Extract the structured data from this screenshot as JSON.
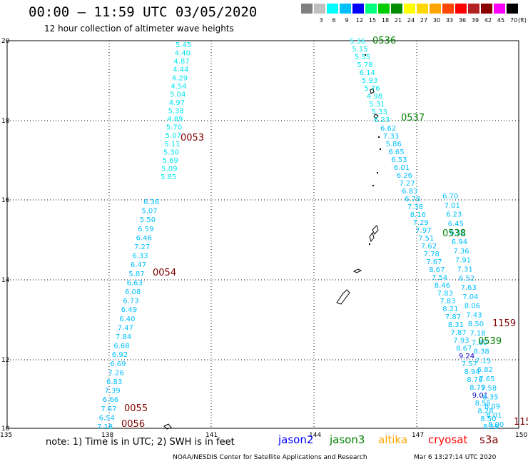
{
  "title": "00:00 – 11:59 UTC 03/05/2020",
  "subtitle": "12 hour collection of altimeter wave heights",
  "legend": {
    "unit_label": "(ft)",
    "items": [
      {
        "label": "",
        "color": "#808080"
      },
      {
        "label": "3",
        "color": "#c0c0c0"
      },
      {
        "label": "6",
        "color": "#00ffff"
      },
      {
        "label": "9",
        "color": "#00bfff"
      },
      {
        "label": "12",
        "color": "#0000ff"
      },
      {
        "label": "15",
        "color": "#00ff7f"
      },
      {
        "label": "18",
        "color": "#00cd00"
      },
      {
        "label": "21",
        "color": "#008b00"
      },
      {
        "label": "24",
        "color": "#ffff00"
      },
      {
        "label": "27",
        "color": "#ffd700"
      },
      {
        "label": "30",
        "color": "#ffa500"
      },
      {
        "label": "33",
        "color": "#ff4500"
      },
      {
        "label": "36",
        "color": "#ff0000"
      },
      {
        "label": "39",
        "color": "#b22222"
      },
      {
        "label": "42",
        "color": "#8b0000"
      },
      {
        "label": "45",
        "color": "#ff00ff"
      },
      {
        "label": "70",
        "color": "#000000"
      }
    ]
  },
  "axes": {
    "x_ticks": [
      "135",
      "138",
      "141",
      "144",
      "147",
      "150"
    ],
    "y_ticks": [
      "20",
      "18",
      "16",
      "14",
      "12",
      "10"
    ]
  },
  "tracks": [
    {
      "color": "#00e5ee",
      "labels": [
        "5.45",
        "4.40",
        "4.87",
        "4.44",
        "4.29",
        "4.54",
        "5.04",
        "4.97",
        "5.38",
        "4.89",
        "5.70",
        "5.07",
        "5.11",
        "5.30",
        "5.69",
        "5.09",
        "5.85"
      ]
    },
    {
      "color": "#00bfff",
      "labels": [
        "6.36",
        "5.07",
        "5.50",
        "6.59",
        "6.46",
        "7.27",
        "6.33",
        "6.47",
        "5.87",
        "6.63",
        "6.08",
        "6.73",
        "6.49",
        "6.40",
        "7.47",
        "7.84",
        "6.68",
        "6.92",
        "6.69",
        "7.26",
        "6.83",
        "7.39",
        "6.66",
        "7.67",
        "6.54",
        "7.18"
      ]
    },
    {
      "color": "#00e5ee",
      "labels": [
        "5.36",
        "5.15",
        "5.55",
        "5.78",
        "6.14",
        "5.93",
        "5.76",
        "4.98",
        "5.31",
        "5.33",
        "6.23"
      ]
    },
    {
      "color": "#00bfff",
      "labels": [
        "6.62",
        "7.33",
        "5.86",
        "6.65",
        "6.53",
        "6.01",
        "6.26",
        "7.27",
        "6.83",
        "6.78",
        "7.38",
        "8.16",
        "7.29",
        "7.97",
        "7.51",
        "7.62",
        "7.78",
        "7.67",
        "8.67",
        "7.54",
        "8.46",
        "7.83",
        "7.83",
        "8.21",
        "7.87",
        "8.31",
        "7.87",
        "7.93",
        "8.67",
        "9.24",
        "7.57",
        "8.94",
        "8.76",
        "8.79",
        "9.01",
        "8.55",
        "8.28",
        "8.50",
        "8.19"
      ]
    },
    {
      "color": "#00bfff",
      "labels": [
        "6.70",
        "7.01",
        "6.23",
        "6.45",
        "6.58",
        "6.94",
        "7.36",
        "7.91",
        "7.31",
        "6.52",
        "7.63",
        "7.04",
        "8.06",
        "7.43",
        "8.50",
        "7.18",
        "7.80",
        "8.38",
        "7.15",
        "6.82",
        "7.65",
        "7.58",
        "8.35",
        "8.09",
        "8.01",
        "8.00"
      ]
    }
  ],
  "time_labels": [
    {
      "text": "0053",
      "color": "#800000"
    },
    {
      "text": "0054",
      "color": "#800000"
    },
    {
      "text": "0055",
      "color": "#800000"
    },
    {
      "text": "0056",
      "color": "#800000"
    },
    {
      "text": "0536",
      "color": "#008000"
    },
    {
      "text": "0537",
      "color": "#008000"
    },
    {
      "text": "0538",
      "color": "#008000"
    },
    {
      "text": "0539",
      "color": "#008000"
    },
    {
      "text": "1159",
      "color": "#800000"
    },
    {
      "text": "115",
      "color": "#800000"
    }
  ],
  "footer": {
    "note": "note:  1) Time is in UTC;  2) SWH is in feet",
    "satellites": [
      {
        "name": "jason2",
        "color": "#0000ff"
      },
      {
        "name": "jason3",
        "color": "#008000"
      },
      {
        "name": "altika",
        "color": "#ffa500"
      },
      {
        "name": "cryosat",
        "color": "#ff0000"
      },
      {
        "name": "s3a",
        "color": "#800000"
      }
    ],
    "credit": "NOAA/NESDIS Center for Satellite Applications and Research",
    "stamp": "Mar  6 13:27:14 UTC 2020"
  }
}
